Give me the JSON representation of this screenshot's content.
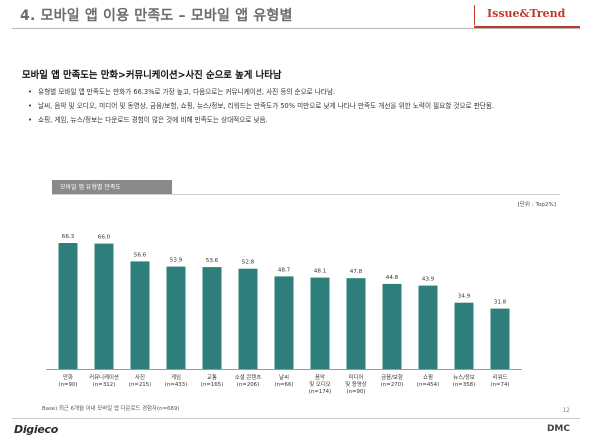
{
  "header": {
    "title": "4. 모바일 앱 이용 만족도 – 모바일 앱 유형별",
    "badge": "Issue&Trend"
  },
  "summary": {
    "headline": "모바일 앱 만족도는 만화>커뮤니케이션>사진 순으로 높게 나타남",
    "bullets": [
      "유형별 모바일 앱 만족도는 만화가 66.3%로 가장 높고, 다음으로는 커뮤니케이션, 사진 등의 순으로 나타남.",
      "날씨, 음악 및 오디오, 미디어 및 동영상, 금융/보험, 쇼핑, 뉴스/정보, 리워드는 만족도가 50% 미만으로 낮게 나타나 만족도 개선을 위한 노력이 필요할 것으로 판단됨.",
      "쇼핑, 게임, 뉴스/정보는 다운로드 경험이 많은 것에 비해 만족도는 상대적으로 낮음."
    ]
  },
  "chart_panel": {
    "tab_label": "모바일 앱 유형별 만족도",
    "unit": "[단위 : Top2%]"
  },
  "chart_data": {
    "type": "bar",
    "categories": [
      [
        "만화",
        "(n=90)"
      ],
      [
        "커뮤니케이션",
        "(n=312)"
      ],
      [
        "사진",
        "(n=215)"
      ],
      [
        "게임",
        "(n=433)"
      ],
      [
        "교통",
        "(n=165)"
      ],
      [
        "소셜 콘텐츠",
        "(n=206)"
      ],
      [
        "날씨",
        "(n=66)"
      ],
      [
        "음악",
        "및 오디오",
        "(n=174)"
      ],
      [
        "미디어",
        "및 동영상",
        "(n=90)"
      ],
      [
        "금융/보험",
        "(n=270)"
      ],
      [
        "쇼핑",
        "(n=454)"
      ],
      [
        "뉴스/정보",
        "(n=358)"
      ],
      [
        "리워드",
        "(n=74)"
      ]
    ],
    "values": [
      66.3,
      66.0,
      56.6,
      53.9,
      53.6,
      52.8,
      48.7,
      48.1,
      47.8,
      44.8,
      43.9,
      34.9,
      31.8
    ],
    "value_labels": [
      "66.3",
      "66.0",
      "56.6",
      "53.9",
      "53.6",
      "52.8",
      "48.7",
      "48.1",
      "47.8",
      "44.8",
      "43.9",
      "34.9",
      "31.8"
    ],
    "ylim": [
      0,
      70
    ],
    "bar_color": "#2e7f7b",
    "grid": false
  },
  "footer": {
    "base_note": "Base) 최근 6개월 이내 모바일 앱 다운로드 경험자(n=689)",
    "page_number": "12",
    "logo_left": "Digieco",
    "logo_right": "DMC"
  }
}
